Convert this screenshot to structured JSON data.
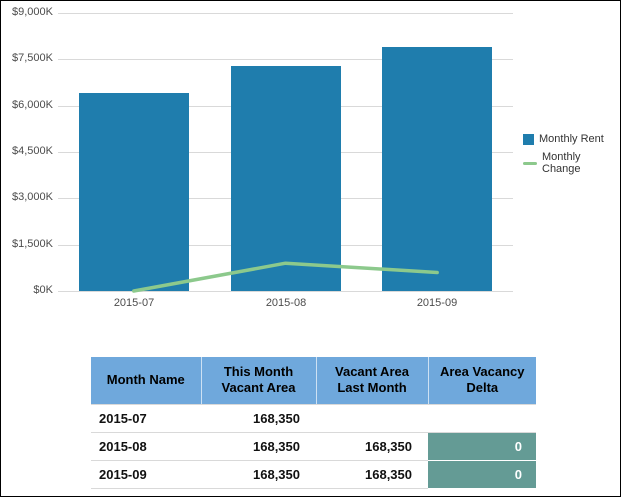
{
  "colors": {
    "bar": "#1f7dad",
    "line": "#8cc98c",
    "header_bg": "#6fa8dc",
    "delta_bg": "#649b95",
    "grid": "#d9d9d9"
  },
  "chart_data": {
    "type": "bar",
    "title": "",
    "categories": [
      "2015-07",
      "2015-08",
      "2015-09"
    ],
    "series": [
      {
        "name": "Monthly Rent",
        "kind": "bar",
        "values": [
          6400,
          7300,
          7900
        ],
        "color": "#1f7dad"
      },
      {
        "name": "Monthly Change",
        "kind": "line",
        "values": [
          0,
          900,
          600
        ],
        "color": "#8cc98c"
      }
    ],
    "ylim": [
      0,
      9000
    ],
    "yticks": [
      {
        "value": 0,
        "label": "$0K"
      },
      {
        "value": 1500,
        "label": "$1,500K"
      },
      {
        "value": 3000,
        "label": "$3,000K"
      },
      {
        "value": 4500,
        "label": "$4,500K"
      },
      {
        "value": 6000,
        "label": "$6,000K"
      },
      {
        "value": 7500,
        "label": "$7,500K"
      },
      {
        "value": 9000,
        "label": "$9,000K"
      }
    ],
    "grid": true,
    "legend_position": "right"
  },
  "table": {
    "headers": [
      "Month Name",
      "This Month Vacant Area",
      "Vacant Area Last Month",
      "Area Vacancy Delta"
    ],
    "rows": [
      {
        "month_name": "2015-07",
        "this_month_vacant_area": "168,350",
        "vacant_area_last_month": "",
        "area_vacancy_delta": "",
        "delta_highlighted": false
      },
      {
        "month_name": "2015-08",
        "this_month_vacant_area": "168,350",
        "vacant_area_last_month": "168,350",
        "area_vacancy_delta": "0",
        "delta_highlighted": true
      },
      {
        "month_name": "2015-09",
        "this_month_vacant_area": "168,350",
        "vacant_area_last_month": "168,350",
        "area_vacancy_delta": "0",
        "delta_highlighted": true
      }
    ]
  }
}
